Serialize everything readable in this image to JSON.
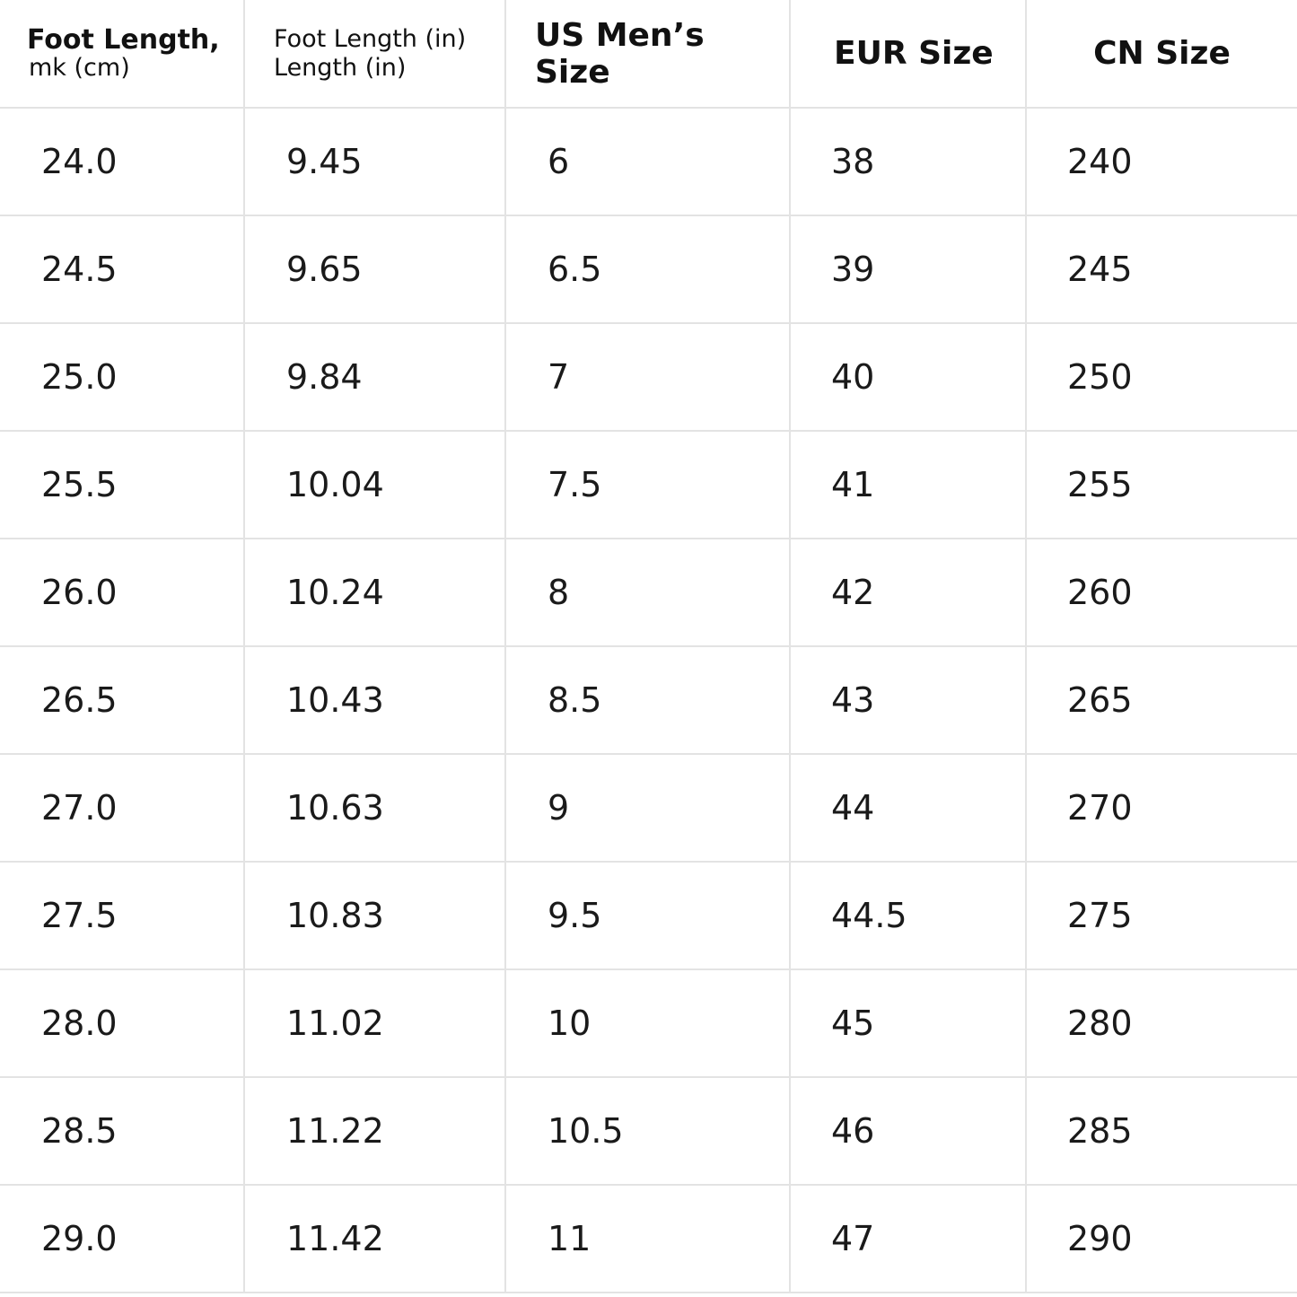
{
  "headers": {
    "foot_cm_main": "Foot Length,",
    "foot_cm_sub": "mk (cm)",
    "foot_in_line1": "Foot Length (in)",
    "foot_in_line2": "Length (in)",
    "us": "US Men’s Size",
    "eur": "EUR Size",
    "cn": "CN Size"
  },
  "rows": [
    {
      "cm": "24.0",
      "in": "9.45",
      "us": "6",
      "eur": "38",
      "cn": "240"
    },
    {
      "cm": "24.5",
      "in": "9.65",
      "us": "6.5",
      "eur": "39",
      "cn": "245"
    },
    {
      "cm": "25.0",
      "in": "9.84",
      "us": "7",
      "eur": "40",
      "cn": "250"
    },
    {
      "cm": "25.5",
      "in": "10.04",
      "us": "7.5",
      "eur": "41",
      "cn": "255"
    },
    {
      "cm": "26.0",
      "in": "10.24",
      "us": "8",
      "eur": "42",
      "cn": "260"
    },
    {
      "cm": "26.5",
      "in": "10.43",
      "us": "8.5",
      "eur": "43",
      "cn": "265"
    },
    {
      "cm": "27.0",
      "in": "10.63",
      "us": "9",
      "eur": "44",
      "cn": "270"
    },
    {
      "cm": "27.5",
      "in": "10.83",
      "us": "9.5",
      "eur": "44.5",
      "cn": "275"
    },
    {
      "cm": "28.0",
      "in": "11.02",
      "us": "10",
      "eur": "45",
      "cn": "280"
    },
    {
      "cm": "28.5",
      "in": "11.22",
      "us": "10.5",
      "eur": "46",
      "cn": "285"
    },
    {
      "cm": "29.0",
      "in": "11.42",
      "us": "11",
      "eur": "47",
      "cn": "290"
    }
  ]
}
